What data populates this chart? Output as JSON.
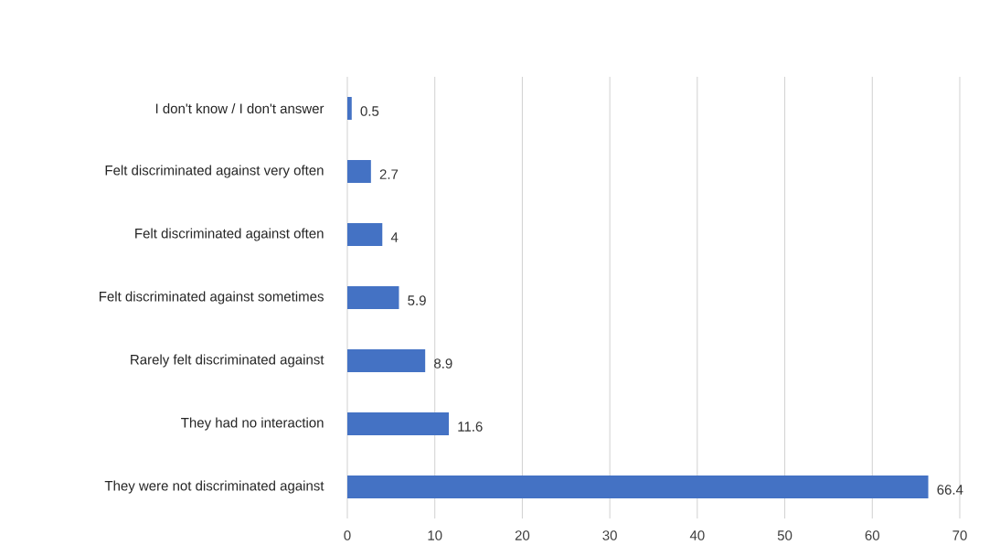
{
  "chart_data": {
    "type": "bar",
    "orientation": "horizontal",
    "categories": [
      "I don't know / I don't answer",
      "Felt discriminated against very often",
      "Felt discriminated against often",
      "Felt discriminated against sometimes",
      "Rarely felt discriminated against",
      "They had no interaction",
      "They were not discriminated against"
    ],
    "values": [
      0.5,
      2.7,
      4,
      5.9,
      8.9,
      11.6,
      66.4
    ],
    "color": "#4472c4",
    "xlim": [
      0,
      70
    ],
    "xticks": [
      0,
      10,
      20,
      30,
      40,
      50,
      60,
      70
    ],
    "grid": "x",
    "data_labels": true
  }
}
